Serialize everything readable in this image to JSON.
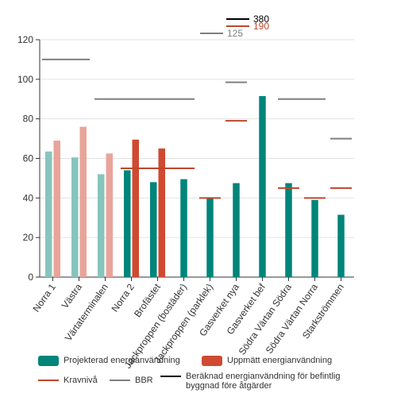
{
  "chart_data": {
    "type": "bar",
    "categories": [
      "Norra 1",
      "Västra",
      "Värtaterminalen",
      "Norra 2",
      "Brofästet",
      "Jackproppen (bostäder)",
      "Jackproppen (parklek)",
      "Gasverket nya",
      "Gasverket bef",
      "Södra Värtan Södra",
      "Södra Värtan Norra",
      "Starkströmmen"
    ],
    "ylim": [
      0,
      120
    ],
    "yticks": [
      0,
      20,
      40,
      60,
      80,
      100,
      120
    ],
    "grid": true,
    "legend_position": "bottom",
    "series": [
      {
        "name": "Projekterad energianvändning",
        "type": "bar",
        "values": [
          63.5,
          60.5,
          52,
          54,
          48,
          49.5,
          40,
          47.5,
          91.5,
          47.5,
          39,
          31.5
        ],
        "colors": [
          "#88c4be",
          "#88c4be",
          "#88c4be",
          "#00857a",
          "#00857a",
          "#00857a",
          "#00857a",
          "#00857a",
          "#00857a",
          "#00857a",
          "#00857a",
          "#00857a"
        ]
      },
      {
        "name": "Uppmätt energianvändning",
        "type": "bar",
        "values": [
          69,
          76,
          62.5,
          69.5,
          65,
          null,
          null,
          null,
          null,
          null,
          null,
          null
        ],
        "colors": [
          "#e9a49a",
          "#e9a49a",
          "#e9a49a",
          "#cf4a30",
          "#cf4a30",
          null,
          null,
          null,
          null,
          null,
          null,
          null
        ]
      },
      {
        "name": "Kravnivå",
        "type": "reference",
        "color": "#c0452b",
        "segments": [
          {
            "from": 3,
            "to": 5,
            "value": 55
          },
          {
            "from": 6,
            "to": 6,
            "value": 40
          },
          {
            "from": 7,
            "to": 7,
            "value": 79
          },
          {
            "from": 9,
            "to": 9,
            "value": 45
          },
          {
            "from": 10,
            "to": 10,
            "value": 40
          },
          {
            "from": 11,
            "to": 11,
            "value": 45
          },
          {
            "from": 7,
            "to": 7,
            "value": 190,
            "offscale": true,
            "label": "190"
          }
        ]
      },
      {
        "name": "BBR",
        "type": "reference",
        "color": "#7f7f7f",
        "segments": [
          {
            "from": 0,
            "to": 1,
            "value": 110
          },
          {
            "from": 2,
            "to": 5,
            "value": 90
          },
          {
            "from": 6,
            "to": 6,
            "value": 125,
            "offscale": true,
            "label": "125"
          },
          {
            "from": 7,
            "to": 7,
            "value": 98.5
          },
          {
            "from": 9,
            "to": 10,
            "value": 90
          },
          {
            "from": 11,
            "to": 11,
            "value": 70
          }
        ]
      },
      {
        "name": "Beräknad energianvändning för befintlig byggnad före åtgärder",
        "type": "reference",
        "color": "#000000",
        "segments": [
          {
            "from": 7,
            "to": 7,
            "value": 380,
            "offscale": true,
            "label": "380"
          }
        ]
      }
    ]
  },
  "legend": {
    "items": [
      {
        "label": "Projekterad energianvändning",
        "color": "#00857a",
        "kind": "box"
      },
      {
        "label": "Uppmätt energianvändning",
        "color": "#cf4a30",
        "kind": "box"
      },
      {
        "label": "Kravnivå",
        "color": "#c0452b",
        "kind": "line"
      },
      {
        "label": "BBR",
        "color": "#7f7f7f",
        "kind": "line"
      },
      {
        "label_line1": "Beräknad energianvändning för befintlig",
        "label_line2": "byggnad före åtgärder",
        "color": "#000000",
        "kind": "line"
      }
    ]
  }
}
